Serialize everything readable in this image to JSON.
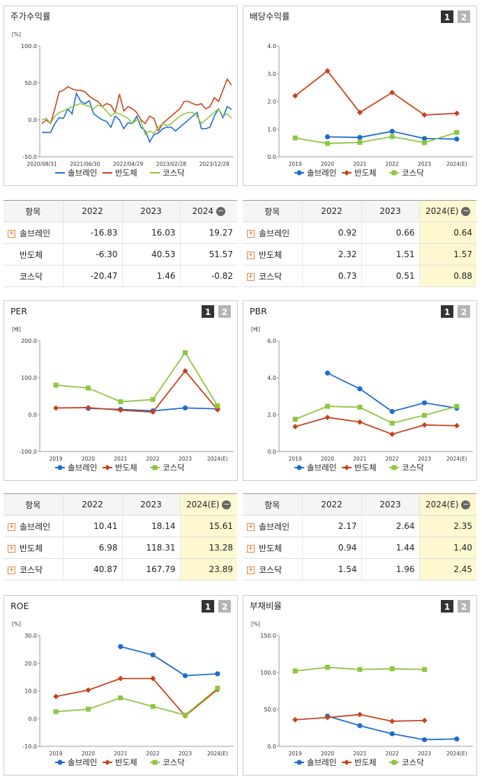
{
  "chart_data": [
    {
      "type": "line",
      "title": "주가수익률",
      "unit": "[%]",
      "categories": [
        "2020/08/31",
        null,
        null,
        null,
        null,
        null,
        null,
        null,
        null,
        null,
        "2021/06/30",
        null,
        null,
        null,
        null,
        null,
        null,
        null,
        null,
        null,
        "2022/04/29",
        null,
        null,
        null,
        null,
        null,
        null,
        null,
        null,
        null,
        "2023/02/28",
        null,
        null,
        null,
        null,
        null,
        null,
        null,
        null,
        null,
        "2023/12/28",
        null,
        null,
        null,
        null
      ],
      "series": [
        {
          "name": "솔브레인",
          "color": "#1c6cd0",
          "marker": null,
          "values": [
            -17,
            -17,
            -17,
            -5,
            3,
            2,
            15,
            8,
            36,
            25,
            22,
            26,
            8,
            4,
            0,
            -2,
            -10,
            5,
            0,
            -12,
            -4,
            -5,
            5,
            -10,
            -15,
            -30,
            -20,
            -18,
            -12,
            -10,
            -10,
            -15,
            -10,
            -5,
            0,
            5,
            10,
            -12,
            -12,
            -10,
            5,
            15,
            3,
            18,
            14
          ]
        },
        {
          "name": "반도체",
          "color": "#c9421a",
          "marker": null,
          "values": [
            -5,
            0,
            -5,
            15,
            38,
            40,
            45,
            42,
            40,
            40,
            38,
            32,
            28,
            25,
            18,
            22,
            20,
            10,
            35,
            12,
            18,
            15,
            10,
            0,
            -5,
            5,
            2,
            -15,
            -5,
            0,
            5,
            10,
            15,
            25,
            25,
            22,
            20,
            22,
            15,
            18,
            30,
            25,
            40,
            55,
            47
          ]
        },
        {
          "name": "코스닥",
          "color": "#8dc63f",
          "marker": null,
          "values": [
            0,
            2,
            -5,
            5,
            10,
            12,
            15,
            18,
            20,
            22,
            20,
            18,
            15,
            20,
            18,
            12,
            5,
            10,
            8,
            5,
            2,
            -5,
            0,
            -2,
            -20,
            -15,
            -18,
            -10,
            -5,
            -8,
            -5,
            0,
            5,
            8,
            10,
            10,
            5,
            -5,
            0,
            5,
            10,
            15,
            5,
            8,
            2
          ]
        }
      ],
      "ylim": [
        -50,
        100
      ],
      "yticks": [
        {
          "value": -50,
          "label": "-50.0"
        },
        {
          "value": 0,
          "label": "0.0"
        },
        {
          "value": 50,
          "label": "50.0"
        },
        {
          "value": 100,
          "label": "100.0"
        }
      ]
    },
    {
      "type": "line",
      "title": "배당수익률",
      "page_buttons": [
        "1",
        "2"
      ],
      "categories": [
        "2019",
        "2020",
        "2021",
        "2022",
        "2023",
        "2024(E)"
      ],
      "series": [
        {
          "name": "솔브레인",
          "color": "#1c6cd0",
          "marker": "circle",
          "values": [
            null,
            0.72,
            0.7,
            0.92,
            0.66,
            0.64
          ]
        },
        {
          "name": "반도체",
          "color": "#c9421a",
          "marker": "diamond",
          "values": [
            2.2,
            3.1,
            1.6,
            2.32,
            1.51,
            1.57
          ]
        },
        {
          "name": "코스닥",
          "color": "#8dc63f",
          "marker": "square",
          "values": [
            0.68,
            0.48,
            0.52,
            0.73,
            0.51,
            0.88
          ]
        }
      ],
      "ylim": [
        0,
        4
      ],
      "yticks": [
        {
          "value": 0,
          "label": "0.0"
        },
        {
          "value": 1,
          "label": "1.0"
        },
        {
          "value": 2,
          "label": "2.0"
        },
        {
          "value": 3,
          "label": "3.0"
        },
        {
          "value": 4,
          "label": "4.0"
        }
      ]
    },
    {
      "type": "line",
      "title": "PER",
      "unit": "[배]",
      "page_buttons": [
        "1",
        "2"
      ],
      "categories": [
        "2019",
        "2020",
        "2021",
        "2022",
        "2023",
        "2024(E)"
      ],
      "series": [
        {
          "name": "솔브레인",
          "color": "#1c6cd0",
          "marker": "circle",
          "values": [
            null,
            17,
            14,
            10.41,
            18.14,
            15.61
          ]
        },
        {
          "name": "반도체",
          "color": "#c9421a",
          "marker": "diamond",
          "values": [
            18,
            19,
            12,
            6.98,
            118.31,
            13.28
          ]
        },
        {
          "name": "코스닥",
          "color": "#8dc63f",
          "marker": "square",
          "values": [
            80,
            72,
            35,
            40.87,
            167.79,
            23.89
          ]
        }
      ],
      "ylim": [
        -100,
        200
      ],
      "yticks": [
        {
          "value": -100,
          "label": "-100.0"
        },
        {
          "value": 0,
          "label": "0.0"
        },
        {
          "value": 100,
          "label": "100.0"
        },
        {
          "value": 200,
          "label": "200.0"
        }
      ]
    },
    {
      "type": "line",
      "title": "PBR",
      "unit": "[배]",
      "page_buttons": [
        "1",
        "2"
      ],
      "categories": [
        "2019",
        "2020",
        "2021",
        "2022",
        "2023",
        "2024(E)"
      ],
      "series": [
        {
          "name": "솔브레인",
          "color": "#1c6cd0",
          "marker": "circle",
          "values": [
            null,
            4.25,
            3.4,
            2.17,
            2.64,
            2.35
          ]
        },
        {
          "name": "반도체",
          "color": "#c9421a",
          "marker": "diamond",
          "values": [
            1.35,
            1.85,
            1.6,
            0.94,
            1.44,
            1.4
          ]
        },
        {
          "name": "코스닥",
          "color": "#8dc63f",
          "marker": "square",
          "values": [
            1.75,
            2.45,
            2.4,
            1.54,
            1.96,
            2.45
          ]
        }
      ],
      "ylim": [
        0,
        6
      ],
      "yticks": [
        {
          "value": 0,
          "label": "0.0"
        },
        {
          "value": 2,
          "label": "2.0"
        },
        {
          "value": 4,
          "label": "4.0"
        },
        {
          "value": 6,
          "label": "6.0"
        }
      ]
    },
    {
      "type": "line",
      "title": "ROE",
      "unit": "[%]",
      "page_buttons": [
        "1",
        "2"
      ],
      "categories": [
        "2019",
        "2020",
        "2021",
        "2022",
        "2023",
        "2024(E)"
      ],
      "series": [
        {
          "name": "솔브레인",
          "color": "#1c6cd0",
          "marker": "circle",
          "values": [
            null,
            null,
            26,
            23,
            15.5,
            16.2
          ]
        },
        {
          "name": "반도체",
          "color": "#c9421a",
          "marker": "diamond",
          "values": [
            8,
            10.3,
            14.5,
            14.5,
            1,
            10.5
          ]
        },
        {
          "name": "코스닥",
          "color": "#8dc63f",
          "marker": "square",
          "values": [
            2.5,
            3.4,
            7.5,
            4.4,
            1.3,
            11
          ]
        }
      ],
      "ylim": [
        -10,
        30
      ],
      "yticks": [
        {
          "value": -10,
          "label": "-10.0"
        },
        {
          "value": 0,
          "label": "0.0"
        },
        {
          "value": 10,
          "label": "10.0"
        },
        {
          "value": 20,
          "label": "20.0"
        },
        {
          "value": 30,
          "label": "30.0"
        }
      ]
    },
    {
      "type": "line",
      "title": "부채비율",
      "unit": "[%]",
      "page_buttons": [
        "1",
        "2"
      ],
      "categories": [
        "2019",
        "2020",
        "2021",
        "2022",
        "2023",
        "2024(E)"
      ],
      "series": [
        {
          "name": "솔브레인",
          "color": "#1c6cd0",
          "marker": "circle",
          "values": [
            null,
            41,
            28,
            17,
            9,
            10
          ]
        },
        {
          "name": "반도체",
          "color": "#c9421a",
          "marker": "diamond",
          "values": [
            36,
            39,
            43,
            34,
            35,
            null
          ]
        },
        {
          "name": "코스닥",
          "color": "#8dc63f",
          "marker": "square",
          "values": [
            102,
            107,
            104,
            105,
            104,
            null
          ]
        }
      ],
      "ylim": [
        0,
        150
      ],
      "yticks": [
        {
          "value": 0,
          "label": "0.0"
        },
        {
          "value": 50,
          "label": "50.0"
        },
        {
          "value": 100,
          "label": "100.0"
        },
        {
          "value": 150,
          "label": "150.0"
        }
      ]
    }
  ],
  "tables": [
    {
      "header": [
        "항목",
        "2022",
        "2023",
        "2024"
      ],
      "highlight_last": false,
      "expandable": [
        true,
        false,
        false
      ],
      "rows": [
        [
          "솔브레인",
          "-16.83",
          "16.03",
          "19.27"
        ],
        [
          "반도체",
          "-6.30",
          "40.53",
          "51.57"
        ],
        [
          "코스닥",
          "-20.47",
          "1.46",
          "-0.82"
        ]
      ]
    },
    {
      "header": [
        "항목",
        "2022",
        "2023",
        "2024(E)"
      ],
      "highlight_last": true,
      "expandable": [
        true,
        true,
        true
      ],
      "rows": [
        [
          "솔브레인",
          "0.92",
          "0.66",
          "0.64"
        ],
        [
          "반도체",
          "2.32",
          "1.51",
          "1.57"
        ],
        [
          "코스닥",
          "0.73",
          "0.51",
          "0.88"
        ]
      ]
    },
    {
      "header": [
        "항목",
        "2022",
        "2023",
        "2024(E)"
      ],
      "highlight_last": true,
      "expandable": [
        true,
        true,
        true
      ],
      "rows": [
        [
          "솔브레인",
          "10.41",
          "18.14",
          "15.61"
        ],
        [
          "반도체",
          "6.98",
          "118.31",
          "13.28"
        ],
        [
          "코스닥",
          "40.87",
          "167.79",
          "23.89"
        ]
      ]
    },
    {
      "header": [
        "항목",
        "2022",
        "2023",
        "2024(E)"
      ],
      "highlight_last": true,
      "expandable": [
        true,
        true,
        true
      ],
      "rows": [
        [
          "솔브레인",
          "2.17",
          "2.64",
          "2.35"
        ],
        [
          "반도체",
          "0.94",
          "1.44",
          "1.40"
        ],
        [
          "코스닥",
          "1.54",
          "1.96",
          "2.45"
        ]
      ]
    }
  ]
}
